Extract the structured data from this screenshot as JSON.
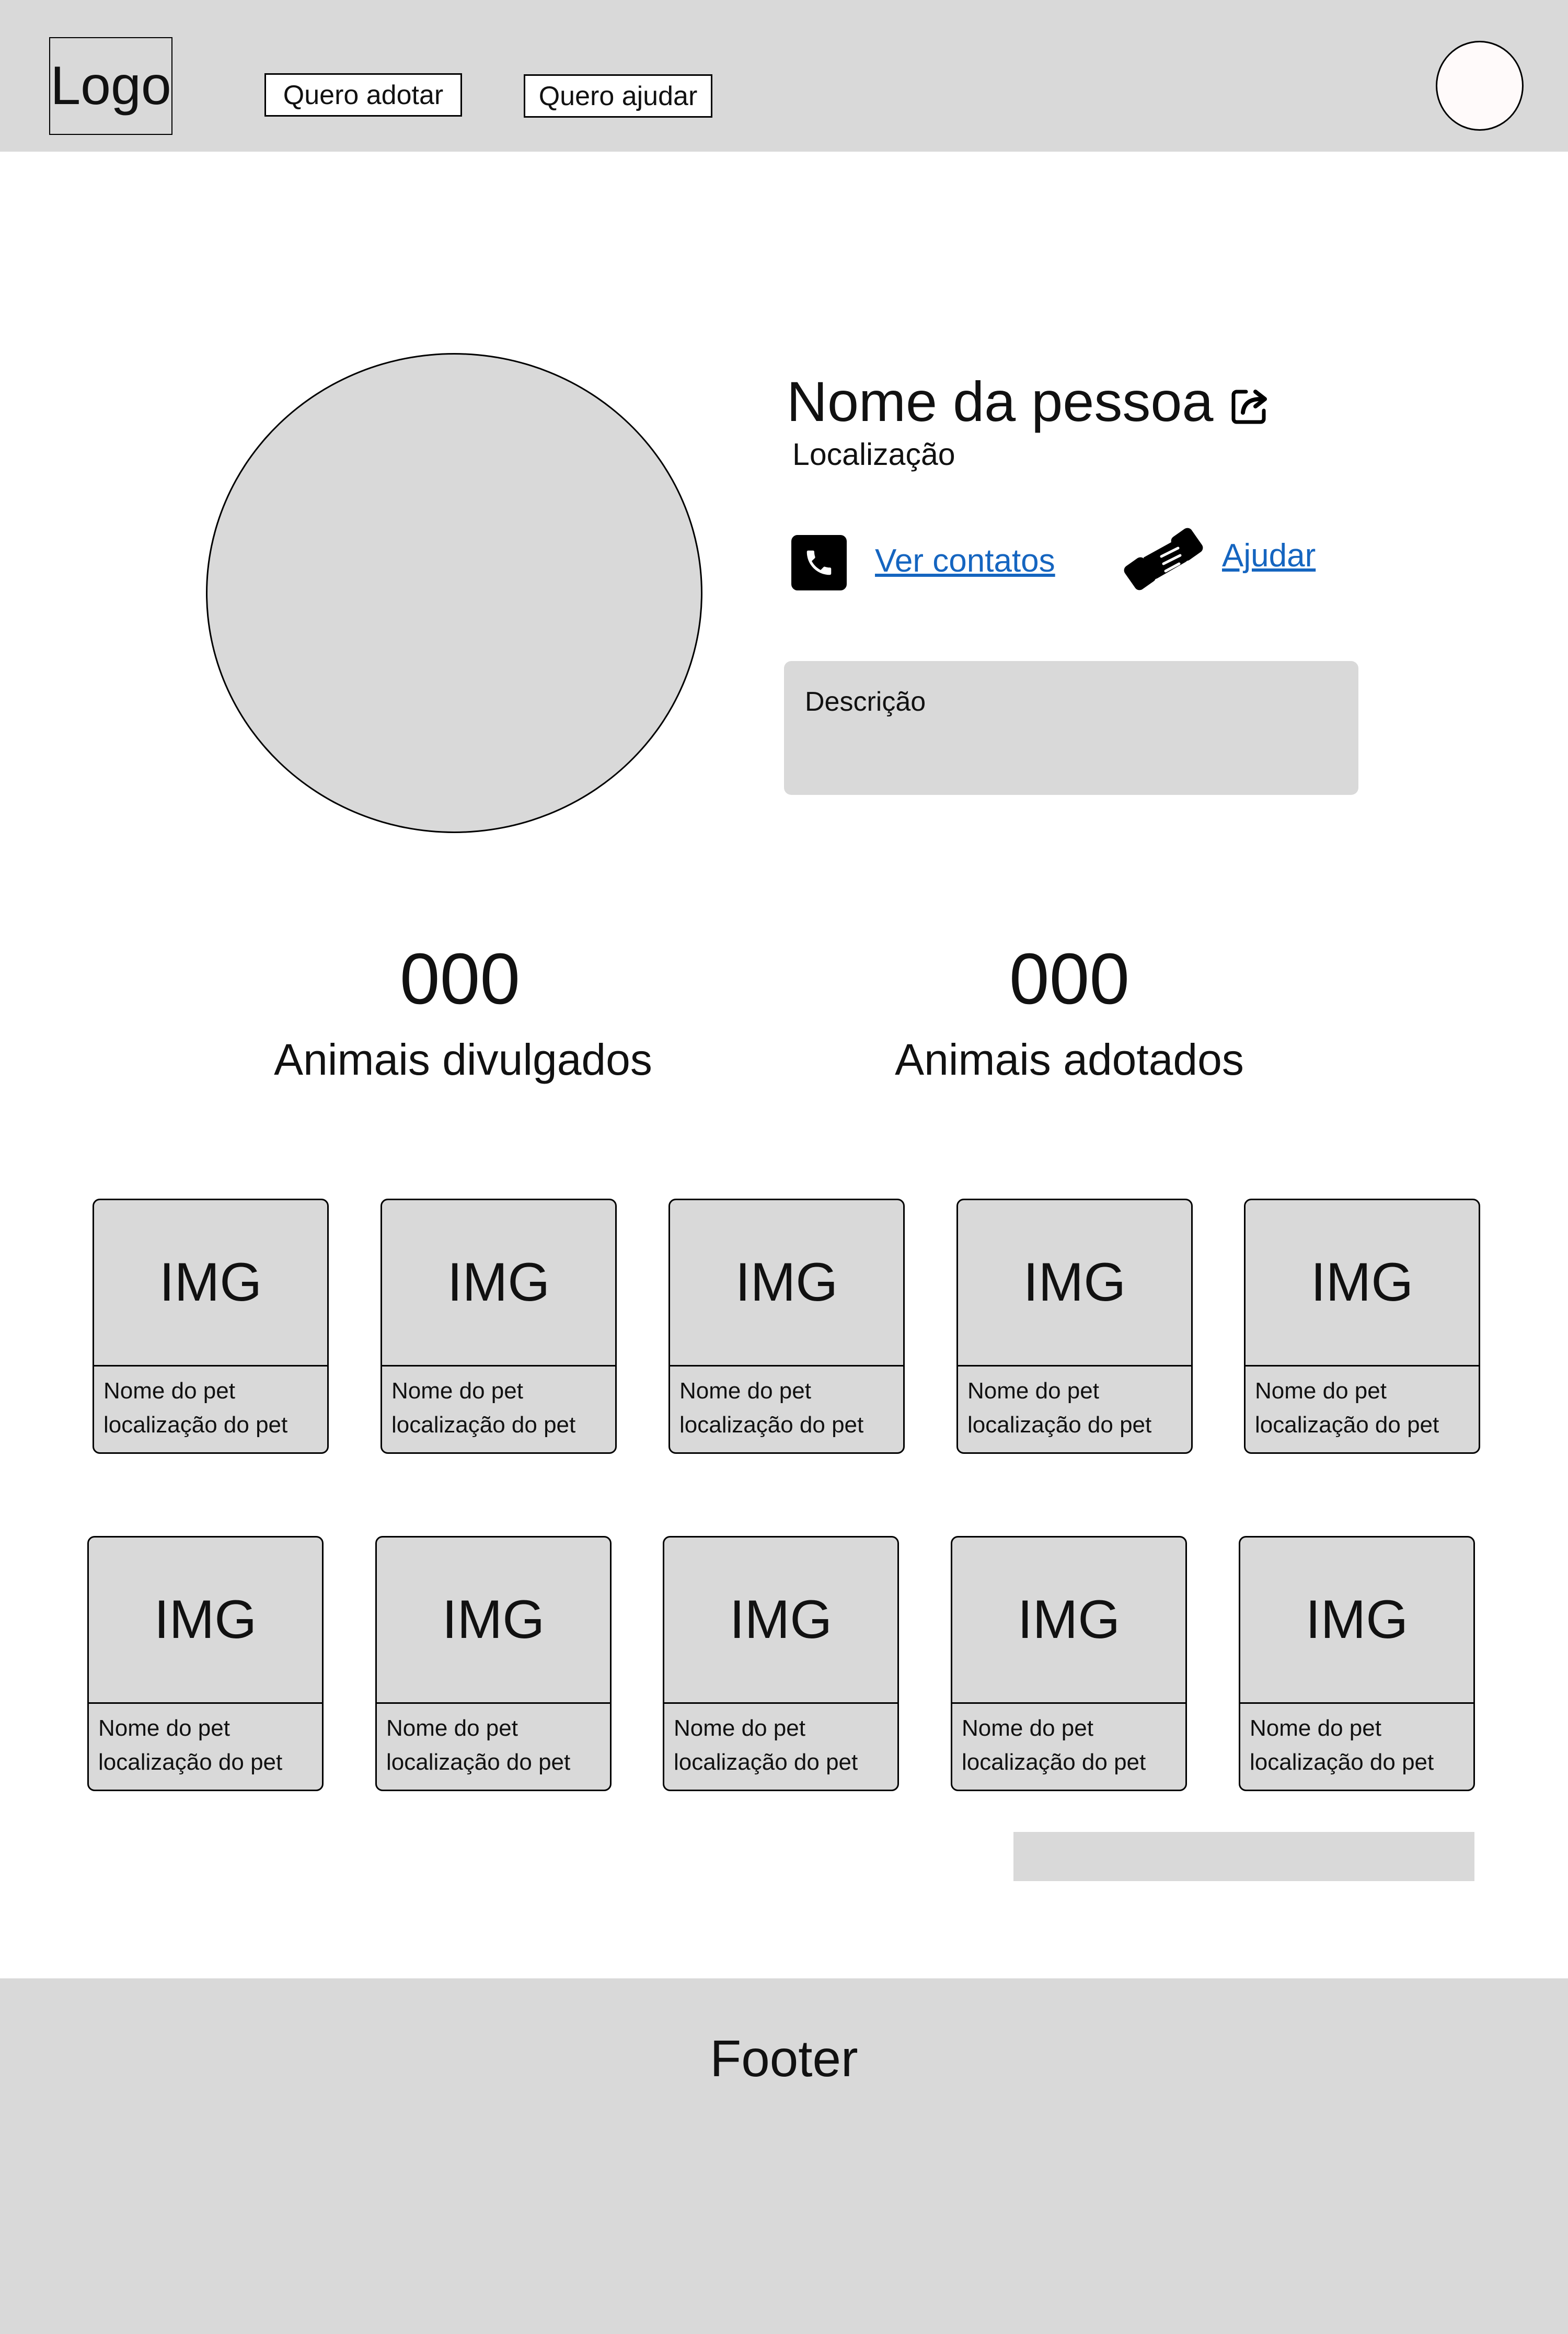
{
  "header": {
    "logo": "Logo",
    "nav": [
      "Quero adotar",
      "Quero ajudar"
    ]
  },
  "profile": {
    "name": "Nome da pessoa",
    "location": "Localização",
    "contacts_link": "Ver contatos",
    "help_link": "Ajudar",
    "description": "Descrição"
  },
  "stats": [
    {
      "value": "000",
      "label": "Animais divulgados"
    },
    {
      "value": "000",
      "label": "Animais adotados"
    }
  ],
  "pets": [
    {
      "img": "IMG",
      "name": "Nome do pet",
      "location": "localização do pet"
    },
    {
      "img": "IMG",
      "name": "Nome do pet",
      "location": "localização do pet"
    },
    {
      "img": "IMG",
      "name": "Nome do pet",
      "location": "localização do pet"
    },
    {
      "img": "IMG",
      "name": "Nome do pet",
      "location": "localização do pet"
    },
    {
      "img": "IMG",
      "name": "Nome do pet",
      "location": "localização do pet"
    },
    {
      "img": "IMG",
      "name": "Nome do pet",
      "location": "localização do pet"
    },
    {
      "img": "IMG",
      "name": "Nome do pet",
      "location": "localização do pet"
    },
    {
      "img": "IMG",
      "name": "Nome do pet",
      "location": "localização do pet"
    },
    {
      "img": "IMG",
      "name": "Nome do pet",
      "location": "localização do pet"
    },
    {
      "img": "IMG",
      "name": "Nome do pet",
      "location": "localização do pet"
    }
  ],
  "footer": {
    "text": "Footer"
  },
  "icons": {
    "share": "share-icon",
    "phone": "phone-icon",
    "help": "handshake-icon"
  },
  "colors": {
    "placeholder_gray": "#d9d9d9",
    "link_blue": "#1565c0"
  }
}
